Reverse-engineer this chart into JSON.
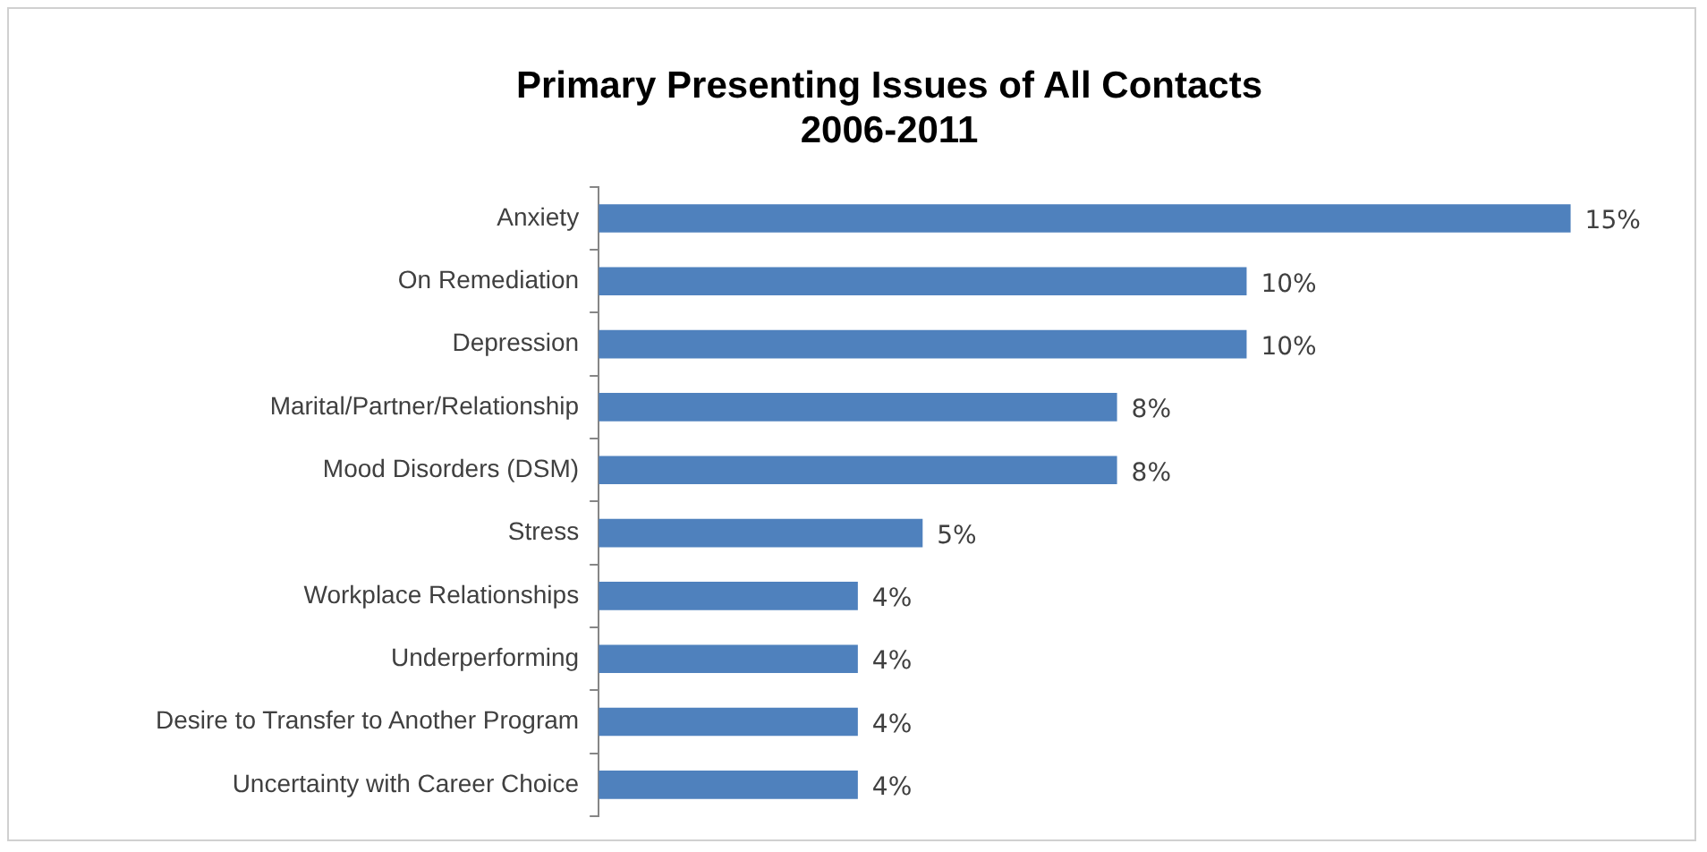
{
  "chart_data": {
    "type": "bar",
    "orientation": "horizontal",
    "title": "Primary Presenting Issues of All Contacts\n2006-2011",
    "categories": [
      "Anxiety",
      "On Remediation",
      "Depression",
      "Marital/Partner/Relationship",
      "Mood Disorders (DSM)",
      "Stress",
      "Workplace Relationships",
      "Underperforming",
      "Desire to Transfer to Another Program",
      "Uncertainty with Career Choice"
    ],
    "values": [
      15,
      10,
      10,
      8,
      8,
      5,
      4,
      4,
      4,
      4
    ],
    "value_labels": [
      "15%",
      "10%",
      "10%",
      "8%",
      "8%",
      "5%",
      "4%",
      "4%",
      "4%",
      "4%"
    ],
    "color": "#4f81bd",
    "legend": false
  }
}
